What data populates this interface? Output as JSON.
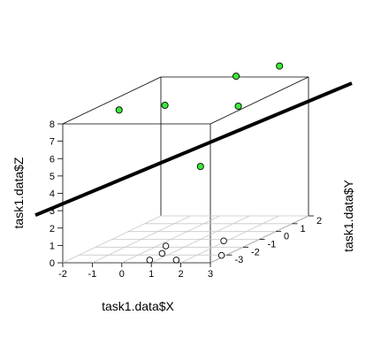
{
  "chart_data": {
    "type": "scatter",
    "title": "",
    "xlabel": "task1.data$X",
    "ylabel": "task1.data$Y",
    "zlabel": "task1.data$Z",
    "xlim": [
      -2,
      3
    ],
    "ylim": [
      -4,
      2
    ],
    "zlim": [
      0,
      8
    ],
    "x_ticks": [
      "-2",
      "-1",
      "0",
      "1",
      "2",
      "3"
    ],
    "y_ticks": [
      "-3",
      "-2",
      "-1",
      "0",
      "1",
      "2"
    ],
    "z_ticks": [
      "0",
      "1",
      "2",
      "3",
      "4",
      "5",
      "6",
      "7",
      "8"
    ],
    "grid": "floor",
    "highlight_color": "#33ee33",
    "regression_line": {
      "color": "#000000"
    },
    "floor_points": [
      {
        "x": 1.65,
        "y": -3.65,
        "z": 0
      },
      {
        "x": 0.75,
        "y": -3.65,
        "z": 0
      },
      {
        "x": 0.7,
        "y": -2.8,
        "z": 0
      },
      {
        "x": 0.3,
        "y": -1.85,
        "z": 0
      },
      {
        "x": 1.9,
        "y": -1.2,
        "z": 0
      },
      {
        "x": 2.85,
        "y": -3.05,
        "z": 0
      }
    ],
    "points": [
      {
        "x": -1.2,
        "y": -2.0,
        "z": 7.9
      },
      {
        "x": 0.02,
        "y": -1.4,
        "z": 7.9
      },
      {
        "x": 1.5,
        "y": -1.9,
        "z": 4.6
      },
      {
        "x": 2.2,
        "y": -0.85,
        "z": 7.6
      },
      {
        "x": 1.6,
        "y": 0.1,
        "z": 8.9
      },
      {
        "x": 2.35,
        "y": 1.4,
        "z": 8.9
      }
    ]
  }
}
